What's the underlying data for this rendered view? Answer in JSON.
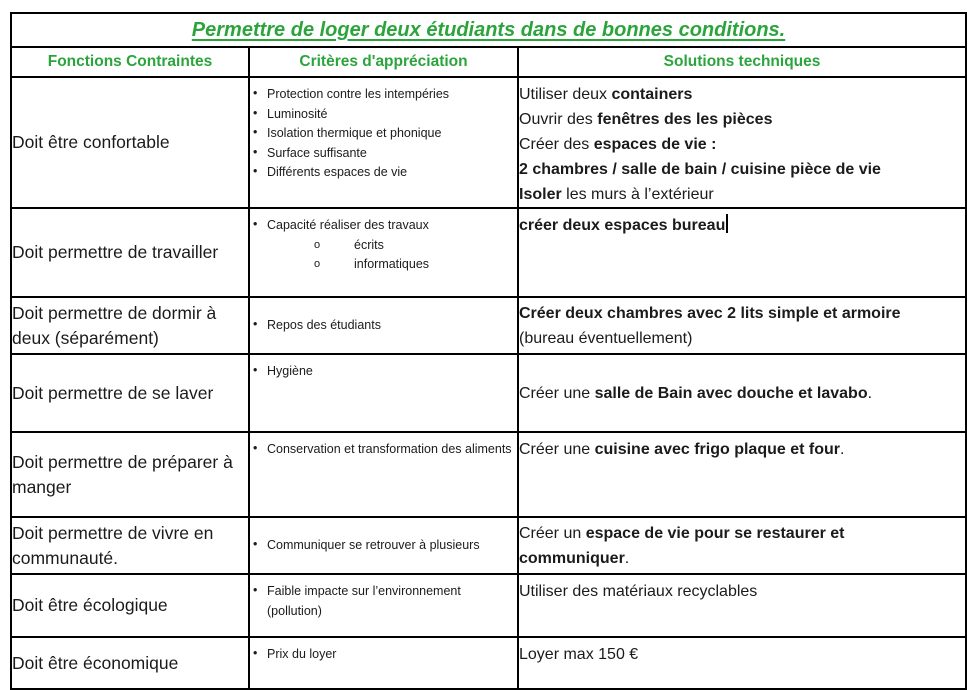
{
  "title": "Permettre de loger deux étudiants dans de bonnes conditions.",
  "columns": [
    "Fonctions Contraintes",
    "Critères d'appréciation",
    "Solutions techniques"
  ],
  "colors": {
    "heading_green": "#2CA43C",
    "border_black": "#000000",
    "body_text": "#1b1b1b"
  },
  "rows": [
    {
      "function": "Doit être confortable",
      "criteria": [
        {
          "text": "Protection contre les intempéries"
        },
        {
          "text": "Luminosité"
        },
        {
          "text": "Isolation thermique et phonique"
        },
        {
          "text": "Surface suffisante"
        },
        {
          "text": "Différents espaces de vie"
        }
      ],
      "solutions": [
        [
          {
            "text": "Utiliser deux ",
            "bold": false
          },
          {
            "text": "containers",
            "bold": true
          }
        ],
        [
          {
            "text": "Ouvrir des ",
            "bold": false
          },
          {
            "text": "fenêtres des les pièces",
            "bold": true
          }
        ],
        [
          {
            "text": "Créer des ",
            "bold": false
          },
          {
            "text": "espaces de vie :",
            "bold": true
          }
        ],
        [
          {
            "text": "2 chambres / salle de bain / cuisine pièce de vie",
            "bold": true
          }
        ],
        [
          {
            "text": "Isoler",
            "bold": true
          },
          {
            "text": " les murs à l’extérieur",
            "bold": false
          }
        ]
      ]
    },
    {
      "function": "Doit permettre de travailler",
      "criteria": [
        {
          "text": "Capacité réaliser des travaux",
          "children": [
            "écrits",
            "informatiques"
          ]
        }
      ],
      "solutions": [
        [
          {
            "text": "créer deux espaces bureau",
            "bold": true
          }
        ]
      ],
      "text_cursor": true
    },
    {
      "function": "Doit permettre de dormir à deux (séparément)",
      "criteria": [
        {
          "text": "Repos des étudiants"
        }
      ],
      "solutions": [
        [
          {
            "text": "Créer deux chambres avec 2 lits simple et armoire",
            "bold": true
          }
        ],
        [
          {
            "text": "(bureau éventuellement)",
            "bold": false
          }
        ]
      ]
    },
    {
      "function": "Doit permettre de se laver",
      "criteria": [
        {
          "text": "Hygiène"
        }
      ],
      "solutions": [
        [
          {
            "text": "Créer une ",
            "bold": false
          },
          {
            "text": "salle de Bain avec douche et lavabo",
            "bold": true
          },
          {
            "text": ".",
            "bold": false
          }
        ]
      ]
    },
    {
      "function": "Doit permettre de préparer à manger",
      "criteria": [
        {
          "text": "Conservation et transformation des aliments"
        }
      ],
      "solutions": [
        [
          {
            "text": "Créer une ",
            "bold": false
          },
          {
            "text": "cuisine avec frigo plaque et four",
            "bold": true
          },
          {
            "text": ".",
            "bold": false
          }
        ]
      ]
    },
    {
      "function": "Doit permettre de vivre en communauté.",
      "criteria": [
        {
          "text": "Communiquer se retrouver à plusieurs"
        }
      ],
      "solutions": [
        [
          {
            "text": "Créer un ",
            "bold": false
          },
          {
            "text": "espace de vie pour se restaurer et",
            "bold": true
          }
        ],
        [
          {
            "text": "communiquer",
            "bold": true
          },
          {
            "text": ".",
            "bold": false
          }
        ]
      ]
    },
    {
      "function": "Doit être écologique",
      "criteria": [
        {
          "text": "Faible impacte sur l’environnement (pollution)"
        }
      ],
      "solutions": [
        [
          {
            "text": "Utiliser des matériaux recyclables",
            "bold": false
          }
        ]
      ]
    },
    {
      "function": "Doit être économique",
      "criteria": [
        {
          "text": "Prix du loyer"
        }
      ],
      "solutions": [
        [
          {
            "text": "Loyer max 150 €",
            "bold": false
          }
        ]
      ]
    }
  ]
}
